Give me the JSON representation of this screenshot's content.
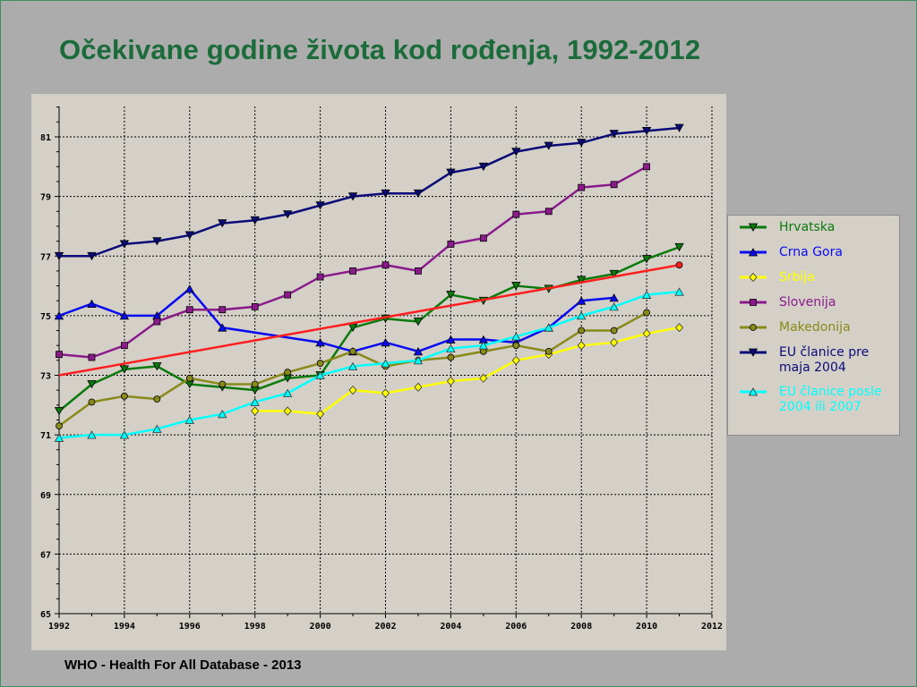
{
  "title": "Očekivane godine života kod rođenja, 1992-2012",
  "source": "WHO - Health For All Database - 2013",
  "legend": [
    {
      "label": "Hrvatska",
      "color": "#0a7a0a",
      "marker": "triangle-down"
    },
    {
      "label": "Crna Gora",
      "color": "#0a0af0",
      "marker": "triangle-up"
    },
    {
      "label": "Srbija",
      "color": "#ffff00",
      "marker": "diamond"
    },
    {
      "label": "Slovenija",
      "color": "#8b1a8b",
      "marker": "square"
    },
    {
      "label": "Makedonija",
      "color": "#8a8a1a",
      "marker": "circle"
    },
    {
      "label": "EU članice pre maja 2004",
      "color": "#0a0a78",
      "marker": "triangle-down"
    },
    {
      "label": "EU članice posle 2004 ili 2007",
      "color": "#00ffff",
      "marker": "triangle-up"
    }
  ],
  "chart_data": {
    "type": "line",
    "xlim": [
      1992,
      2012
    ],
    "ylim": [
      65,
      82
    ],
    "x_ticks": [
      "1992",
      "1994",
      "1996",
      "1998",
      "2000",
      "2002",
      "2004",
      "2006",
      "2008",
      "2010",
      "2012"
    ],
    "y_ticks": [
      "65",
      "67",
      "69",
      "71",
      "73",
      "75",
      "77",
      "79",
      "81"
    ],
    "grid": true,
    "legend_position": "right",
    "series": [
      {
        "name": "Hrvatska",
        "color": "#0a7a0a",
        "marker": "triangle-down",
        "x": [
          1992,
          1993,
          1994,
          1995,
          1996,
          1997,
          1998,
          1999,
          2000,
          2001,
          2002,
          2003,
          2004,
          2005,
          2006,
          2007,
          2008,
          2009,
          2010,
          2011
        ],
        "y": [
          71.8,
          72.7,
          73.2,
          73.3,
          72.7,
          72.6,
          72.5,
          72.9,
          73.0,
          74.6,
          74.9,
          74.8,
          75.7,
          75.5,
          76.0,
          75.9,
          76.2,
          76.4,
          76.9,
          77.3
        ]
      },
      {
        "name": "Crna Gora",
        "color": "#0a0af0",
        "marker": "triangle-up",
        "x": [
          1992,
          1993,
          1994,
          1995,
          1996,
          1997,
          2000,
          2001,
          2002,
          2003,
          2004,
          2005,
          2006,
          2007,
          2008,
          2009
        ],
        "y": [
          75.0,
          75.4,
          75.0,
          75.0,
          75.9,
          74.6,
          74.1,
          73.8,
          74.1,
          73.8,
          74.2,
          74.2,
          74.1,
          74.6,
          75.5,
          75.6
        ]
      },
      {
        "name": "Srbija",
        "color": "#ffff00",
        "marker": "diamond",
        "x": [
          1998,
          1999,
          2000,
          2001,
          2002,
          2003,
          2004,
          2005,
          2006,
          2007,
          2008,
          2009,
          2010,
          2011
        ],
        "y": [
          71.8,
          71.8,
          71.7,
          72.5,
          72.4,
          72.6,
          72.8,
          72.9,
          73.5,
          73.7,
          74.0,
          74.1,
          74.4,
          74.6
        ]
      },
      {
        "name": "Slovenija",
        "color": "#8b1a8b",
        "marker": "square",
        "x": [
          1992,
          1993,
          1994,
          1995,
          1996,
          1997,
          1998,
          1999,
          2000,
          2001,
          2002,
          2003,
          2004,
          2005,
          2006,
          2007,
          2008,
          2009,
          2010
        ],
        "y": [
          73.7,
          73.6,
          74.0,
          74.8,
          75.2,
          75.2,
          75.3,
          75.7,
          76.3,
          76.5,
          76.7,
          76.5,
          77.4,
          77.6,
          78.4,
          78.5,
          79.3,
          79.4,
          80.0
        ]
      },
      {
        "name": "Makedonija",
        "color": "#8a8a1a",
        "marker": "circle",
        "x": [
          1992,
          1993,
          1994,
          1995,
          1996,
          1997,
          1998,
          1999,
          2000,
          2001,
          2002,
          2003,
          2004,
          2005,
          2006,
          2007,
          2008,
          2009,
          2010
        ],
        "y": [
          71.3,
          72.1,
          72.3,
          72.2,
          72.9,
          72.7,
          72.7,
          73.1,
          73.4,
          73.8,
          73.3,
          73.5,
          73.6,
          73.8,
          74.0,
          73.8,
          74.5,
          74.5,
          75.1
        ]
      },
      {
        "name": "EU članice pre maja 2004",
        "color": "#0a0a78",
        "marker": "triangle-down",
        "x": [
          1992,
          1993,
          1994,
          1995,
          1996,
          1997,
          1998,
          1999,
          2000,
          2001,
          2002,
          2003,
          2004,
          2005,
          2006,
          2007,
          2008,
          2009,
          2010,
          2011
        ],
        "y": [
          77.0,
          77.0,
          77.4,
          77.5,
          77.7,
          78.1,
          78.2,
          78.4,
          78.7,
          79.0,
          79.1,
          79.1,
          79.8,
          80.0,
          80.5,
          80.7,
          80.8,
          81.1,
          81.2,
          81.3
        ]
      },
      {
        "name": "EU članice posle 2004 ili 2007",
        "color": "#00ffff",
        "marker": "triangle-up",
        "x": [
          1992,
          1993,
          1994,
          1995,
          1996,
          1997,
          1998,
          1999,
          2000,
          2001,
          2002,
          2003,
          2004,
          2005,
          2006,
          2007,
          2008,
          2009,
          2010,
          2011
        ],
        "y": [
          70.9,
          71.0,
          71.0,
          71.2,
          71.5,
          71.7,
          72.1,
          72.4,
          73.0,
          73.3,
          73.4,
          73.5,
          73.9,
          74.0,
          74.3,
          74.6,
          75.0,
          75.3,
          75.7,
          75.8
        ]
      },
      {
        "name": "",
        "color": "#ff1e1e",
        "marker": "circle-end",
        "x": [
          1992,
          2011
        ],
        "y": [
          73.0,
          76.7
        ]
      }
    ]
  }
}
